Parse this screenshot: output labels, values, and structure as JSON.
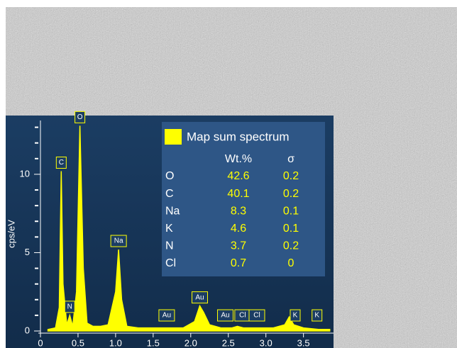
{
  "chart_data": {
    "type": "area",
    "y_label": "cps/eV",
    "x": [
      0.1,
      0.2,
      0.25,
      0.277,
      0.3,
      0.35,
      0.39,
      0.43,
      0.48,
      0.525,
      0.57,
      0.62,
      0.7,
      0.8,
      0.9,
      1.0,
      1.04,
      1.08,
      1.15,
      1.3,
      1.5,
      1.7,
      1.9,
      2.05,
      2.12,
      2.17,
      2.25,
      2.4,
      2.55,
      2.62,
      2.7,
      2.9,
      3.1,
      3.25,
      3.31,
      3.37,
      3.5,
      3.7,
      3.85
    ],
    "series": [
      {
        "name": "Map sum spectrum",
        "color": "#ffff00",
        "values": [
          0.1,
          0.2,
          1.5,
          10.2,
          3,
          0.4,
          1.0,
          0.3,
          2.5,
          13.1,
          4,
          0.5,
          0.3,
          0.3,
          0.4,
          2.5,
          5.2,
          2,
          0.3,
          0.2,
          0.2,
          0.2,
          0.2,
          0.6,
          1.6,
          1.2,
          0.4,
          0.2,
          0.2,
          0.3,
          0.2,
          0.2,
          0.2,
          0.4,
          0.9,
          0.4,
          0.2,
          0.1,
          0.1
        ]
      }
    ],
    "peak_labels": [
      {
        "label": "C",
        "x": 0.277
      },
      {
        "label": "O",
        "x": 0.525
      },
      {
        "label": "N",
        "x": 0.39
      },
      {
        "label": "Na",
        "x": 1.04
      },
      {
        "label": "Au",
        "x": 1.68
      },
      {
        "label": "Au",
        "x": 2.12
      },
      {
        "label": "Au",
        "x": 2.46
      },
      {
        "label": "Cl",
        "x": 2.69
      },
      {
        "label": "Cl",
        "x": 2.88
      },
      {
        "label": "K",
        "x": 3.39
      },
      {
        "label": "K",
        "x": 3.68
      }
    ],
    "xlim": [
      0,
      3.9
    ],
    "xticks": [
      0,
      0.5,
      {
        "value": 1.0,
        "label": "1.0"
      },
      1.5,
      {
        "value": 2.0,
        "label": "2.0"
      },
      2.5,
      {
        "value": 3.0,
        "label": "3.0"
      },
      3.5
    ],
    "ylim": [
      0,
      13.75
    ],
    "yticks": [
      0,
      5,
      10
    ],
    "yminor": [
      1,
      2,
      3,
      4,
      6,
      7,
      8,
      9,
      11,
      12,
      13
    ],
    "table": {
      "columns": [
        "Wt.%",
        "σ"
      ],
      "rows": [
        [
          "O",
          42.6,
          0.2
        ],
        [
          "C",
          40.1,
          0.2
        ],
        [
          "Na",
          8.3,
          0.1
        ],
        [
          "K",
          4.6,
          0.1
        ],
        [
          "N",
          3.7,
          0.2
        ],
        [
          "Cl",
          0.7,
          0
        ]
      ]
    }
  }
}
